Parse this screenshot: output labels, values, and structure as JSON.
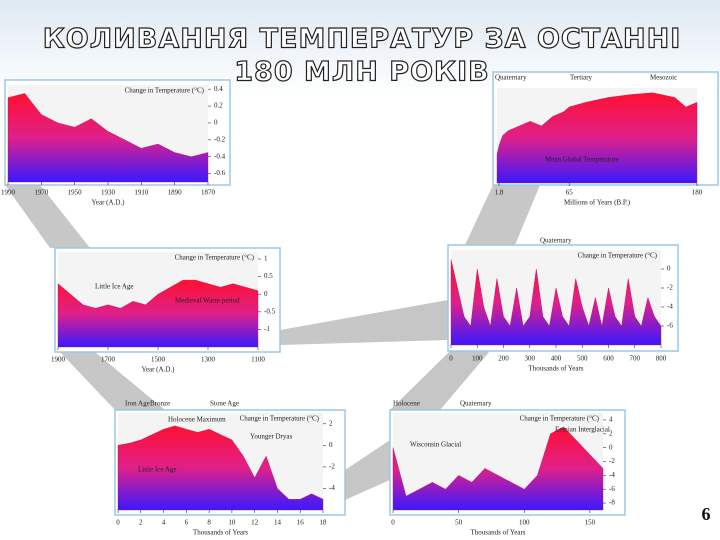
{
  "title": "КОЛИВАННЯ ТЕМПЕРАТУР ЗА ОСТАННІ",
  "subtitle": "180 МЛН РОКІВ",
  "page_number": "6",
  "chart_data": [
    {
      "type": "area",
      "ylabel": "Change in Temperature (°C)",
      "xlabel": "Year (A.D.)",
      "x": [
        1990,
        1980,
        1970,
        1960,
        1950,
        1940,
        1930,
        1920,
        1910,
        1900,
        1890,
        1880,
        1870
      ],
      "values": [
        0.3,
        0.35,
        0.1,
        0.0,
        -0.05,
        0.05,
        -0.1,
        -0.2,
        -0.3,
        -0.25,
        -0.35,
        -0.4,
        -0.35
      ],
      "xlim": [
        1990,
        1870
      ],
      "xticks": [
        1990,
        1970,
        1950,
        1930,
        1910,
        1890,
        1870
      ],
      "ylim": [
        -0.7,
        0.45
      ],
      "yticks": [
        0.4,
        0.2,
        0,
        -0.2,
        -0.4,
        -0.6
      ],
      "labels": []
    },
    {
      "type": "area",
      "xlabel": "Millions of Years (B.P.)",
      "x": [
        0,
        2,
        5,
        10,
        20,
        30,
        40,
        50,
        60,
        65,
        80,
        100,
        120,
        140,
        160,
        170,
        180
      ],
      "values": [
        3,
        4,
        5,
        5.5,
        6,
        6.5,
        6,
        7,
        7.5,
        8,
        8.5,
        9,
        9.3,
        9.5,
        9,
        8,
        8.5
      ],
      "xlim": [
        0,
        180
      ],
      "xticks": [
        1.8,
        65,
        180
      ],
      "ylim": [
        0,
        10
      ],
      "yticks": [],
      "labels": [
        "Quaternary",
        "Tertiary",
        "Mesozoic",
        "Mean Global Temperature"
      ]
    },
    {
      "type": "area",
      "ylabel": "Change in Temperature (°C)",
      "xlabel": "Year (A.D.)",
      "x": [
        1900,
        1850,
        1800,
        1750,
        1700,
        1650,
        1600,
        1550,
        1500,
        1450,
        1400,
        1350,
        1300,
        1250,
        1200,
        1150,
        1100
      ],
      "values": [
        0.3,
        0,
        -0.3,
        -0.4,
        -0.3,
        -0.4,
        -0.2,
        -0.3,
        0,
        0.2,
        0.4,
        0.4,
        0.3,
        0.2,
        0.3,
        0.2,
        0.1
      ],
      "xlim": [
        1900,
        1100
      ],
      "xticks": [
        1900,
        1700,
        1500,
        1300,
        1100
      ],
      "ylim": [
        -1.5,
        1.2
      ],
      "yticks": [
        1,
        0.5,
        0,
        -0.5,
        -1
      ],
      "labels": [
        "Little Ice Age",
        "Medieval Warm period"
      ]
    },
    {
      "type": "area",
      "ylabel": "Change in Temperature (°C)",
      "xlabel": "Thousands of Years",
      "x": [
        0,
        25,
        50,
        75,
        100,
        125,
        150,
        175,
        200,
        225,
        250,
        275,
        300,
        325,
        350,
        375,
        400,
        425,
        450,
        475,
        500,
        525,
        550,
        575,
        600,
        625,
        650,
        675,
        700,
        725,
        750,
        775,
        800
      ],
      "values": [
        1,
        -2,
        -5,
        -6,
        0,
        -4,
        -6,
        -1,
        -5,
        -6,
        -2,
        -6,
        -5,
        0,
        -5,
        -6,
        -2,
        -5,
        -6,
        -1,
        -4,
        -6,
        -3,
        -6,
        -2,
        -5,
        -6,
        -1,
        -5,
        -6,
        -3,
        -5,
        -6
      ],
      "xlim": [
        0,
        800
      ],
      "xticks": [
        0,
        100,
        200,
        300,
        400,
        500,
        600,
        700,
        800
      ],
      "ylim": [
        -8,
        2
      ],
      "yticks": [
        0,
        -2,
        -4,
        -6
      ],
      "labels": [
        "Quaternary"
      ]
    },
    {
      "type": "area",
      "ylabel": "Change in Temperature (°C)",
      "xlabel": "Thousands of Years",
      "x": [
        0,
        1,
        2,
        3,
        4,
        5,
        6,
        7,
        8,
        9,
        10,
        11,
        12,
        13,
        14,
        15,
        16,
        17,
        18
      ],
      "values": [
        0,
        0.2,
        0.5,
        1,
        1.5,
        1.8,
        1.5,
        1.2,
        1.5,
        1,
        0.5,
        -1,
        -3,
        -1,
        -4,
        -5,
        -5,
        -4.5,
        -5
      ],
      "xlim": [
        0,
        18
      ],
      "xticks": [
        0,
        2,
        4,
        6,
        8,
        10,
        12,
        14,
        16,
        18
      ],
      "ylim": [
        -6,
        3
      ],
      "yticks": [
        2,
        0,
        -2,
        -4
      ],
      "labels": [
        "Iron Age",
        "Bronze",
        "Stone Age",
        "Holocene Maximum",
        "Younger Dryas",
        "Little Ice Age"
      ]
    },
    {
      "type": "area",
      "ylabel": "Change in Temperature (°C)",
      "xlabel": "Thousands of Years",
      "x": [
        0,
        10,
        20,
        30,
        40,
        50,
        60,
        70,
        80,
        90,
        100,
        110,
        120,
        130,
        140,
        150,
        160
      ],
      "values": [
        0,
        -7,
        -6,
        -5,
        -6,
        -4,
        -5,
        -3,
        -4,
        -5,
        -6,
        -4,
        2,
        3,
        1,
        -1,
        -3
      ],
      "xlim": [
        0,
        160
      ],
      "xticks": [
        0,
        50,
        100,
        150
      ],
      "ylim": [
        -9,
        5
      ],
      "yticks": [
        4,
        2,
        0,
        -2,
        -4,
        -6,
        -8
      ],
      "labels": [
        "Holocene",
        "Quaternary",
        "Eemian Interglacial",
        "Wisconsin Glacial"
      ]
    }
  ]
}
